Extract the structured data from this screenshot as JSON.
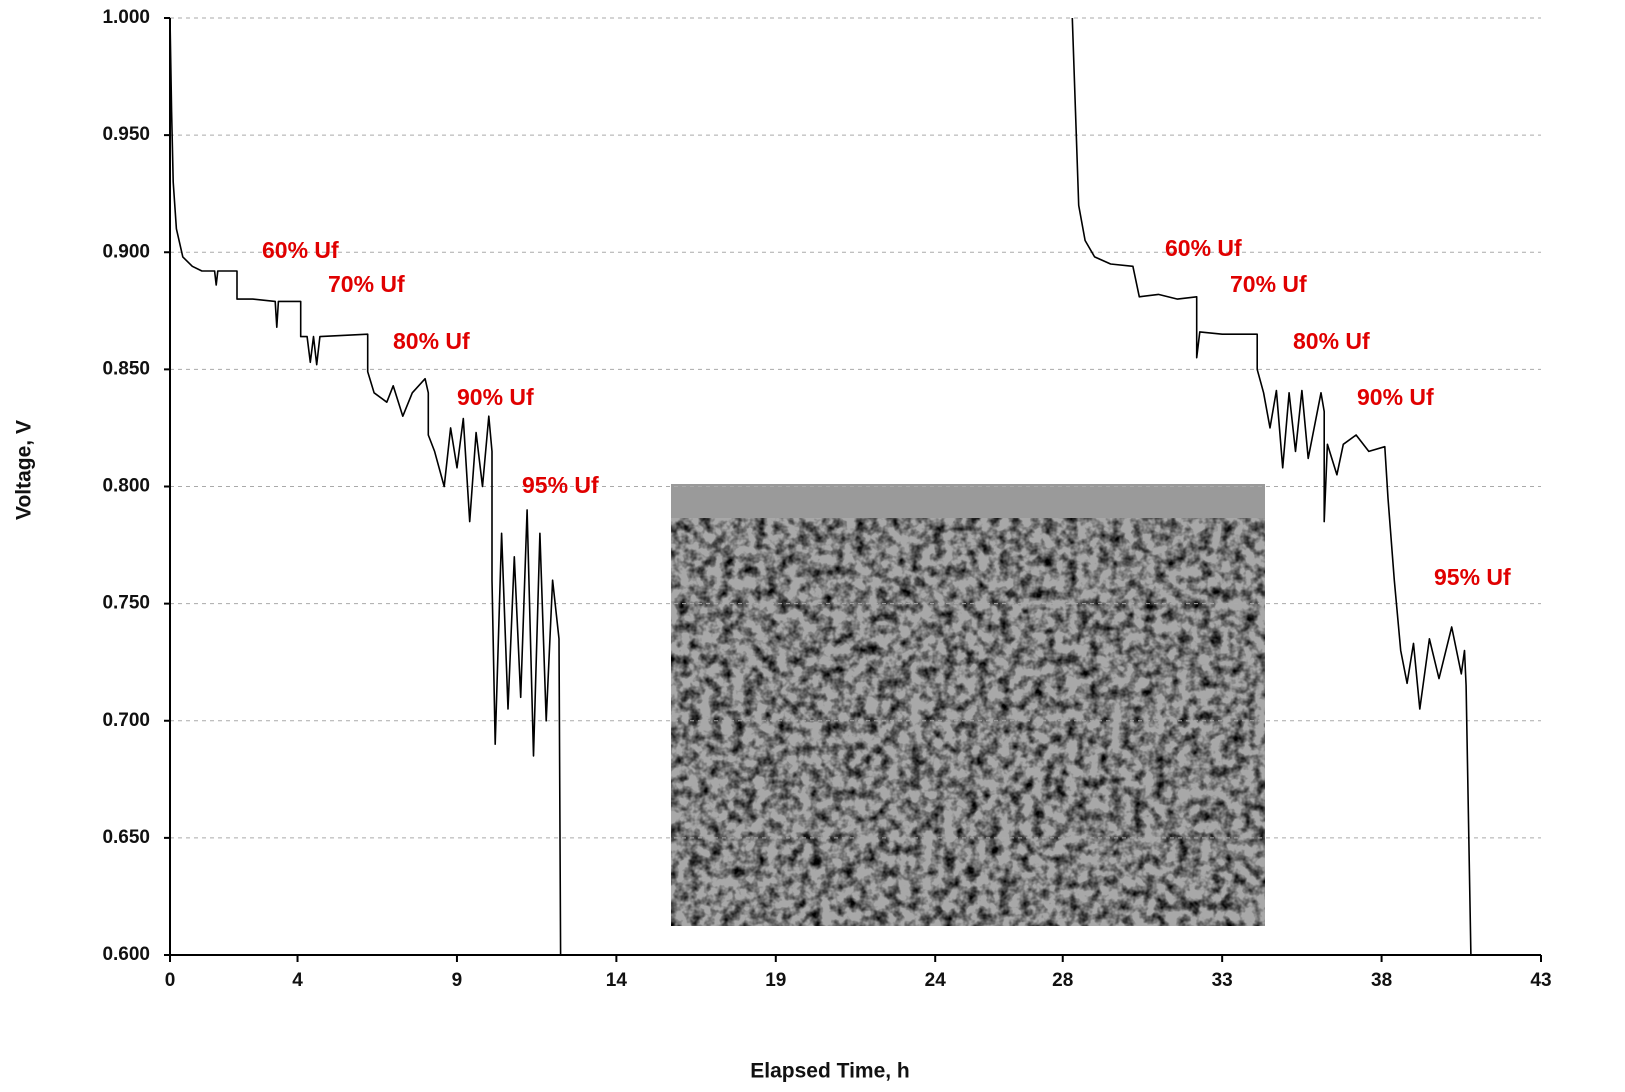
{
  "chart_data": {
    "type": "line",
    "color": "#000000",
    "grid": true,
    "xlabel": "Elapsed Time, h",
    "ylabel": "Voltage, V",
    "xlim": [
      0,
      43
    ],
    "ylim": [
      0.6,
      1.0
    ],
    "xticks": [
      0,
      4,
      9,
      14,
      19,
      24,
      28,
      33,
      38,
      43
    ],
    "yticks": [
      {
        "value": 0.6,
        "label": "0.600"
      },
      {
        "value": 0.65,
        "label": "0.650"
      },
      {
        "value": 0.7,
        "label": "0.700"
      },
      {
        "value": 0.75,
        "label": "0.750"
      },
      {
        "value": 0.8,
        "label": "0.800"
      },
      {
        "value": 0.85,
        "label": "0.850"
      },
      {
        "value": 0.9,
        "label": "0.900"
      },
      {
        "value": 0.95,
        "label": "0.950"
      },
      {
        "value": 1.0,
        "label": "1.000"
      }
    ],
    "annotations": [
      "60% Uf",
      "70% Uf",
      "80% Uf",
      "90% Uf",
      "95% Uf",
      "60% Uf",
      "70% Uf",
      "80% Uf",
      "90% Uf",
      "95% Uf"
    ],
    "x": [
      0,
      0.05,
      0.1,
      0.2,
      0.4,
      0.7,
      1.0,
      1.4,
      1.45,
      1.5,
      2.1,
      2.1,
      2.6,
      3.3,
      3.35,
      3.4,
      4.1,
      4.1,
      4.3,
      4.4,
      4.5,
      4.6,
      4.7,
      6.2,
      6.2,
      6.4,
      6.8,
      7.0,
      7.3,
      7.6,
      8.0,
      8.1,
      8.1,
      8.3,
      8.6,
      8.8,
      9.0,
      9.2,
      9.4,
      9.6,
      9.8,
      10.0,
      10.1,
      10.1,
      10.2,
      10.4,
      10.6,
      10.8,
      11.0,
      11.2,
      11.4,
      11.6,
      11.8,
      12.0,
      12.2,
      12.25,
      20,
      28.3,
      28.4,
      28.5,
      28.7,
      29.0,
      29.5,
      30.2,
      30.4,
      31.0,
      31.6,
      32.2,
      32.2,
      32.3,
      33.0,
      34.1,
      34.1,
      34.3,
      34.5,
      34.7,
      34.9,
      35.1,
      35.3,
      35.5,
      35.7,
      36.1,
      36.2,
      36.2,
      36.3,
      36.6,
      36.8,
      37.2,
      37.6,
      38.1,
      38.2,
      38.4,
      38.6,
      38.8,
      39.0,
      39.2,
      39.5,
      39.8,
      40.2,
      40.5,
      40.6,
      40.65,
      40.8
    ],
    "values": [
      1.0,
      0.96,
      0.93,
      0.91,
      0.898,
      0.894,
      0.892,
      0.892,
      0.886,
      0.892,
      0.892,
      0.88,
      0.88,
      0.879,
      0.868,
      0.879,
      0.879,
      0.864,
      0.864,
      0.853,
      0.864,
      0.852,
      0.864,
      0.865,
      0.849,
      0.84,
      0.836,
      0.843,
      0.83,
      0.84,
      0.846,
      0.84,
      0.822,
      0.815,
      0.8,
      0.825,
      0.808,
      0.829,
      0.785,
      0.823,
      0.8,
      0.83,
      0.815,
      0.76,
      0.69,
      0.78,
      0.705,
      0.77,
      0.71,
      0.79,
      0.685,
      0.78,
      0.7,
      0.76,
      0.735,
      0.6,
      null,
      1.0,
      0.96,
      0.92,
      0.905,
      0.898,
      0.895,
      0.894,
      0.881,
      0.882,
      0.88,
      0.881,
      0.855,
      0.866,
      0.865,
      0.865,
      0.85,
      0.84,
      0.825,
      0.841,
      0.808,
      0.84,
      0.815,
      0.841,
      0.812,
      0.84,
      0.832,
      0.785,
      0.818,
      0.805,
      0.818,
      0.822,
      0.815,
      0.817,
      0.795,
      0.76,
      0.73,
      0.716,
      0.733,
      0.705,
      0.735,
      0.718,
      0.74,
      0.72,
      0.73,
      0.715,
      0.6
    ]
  }
}
